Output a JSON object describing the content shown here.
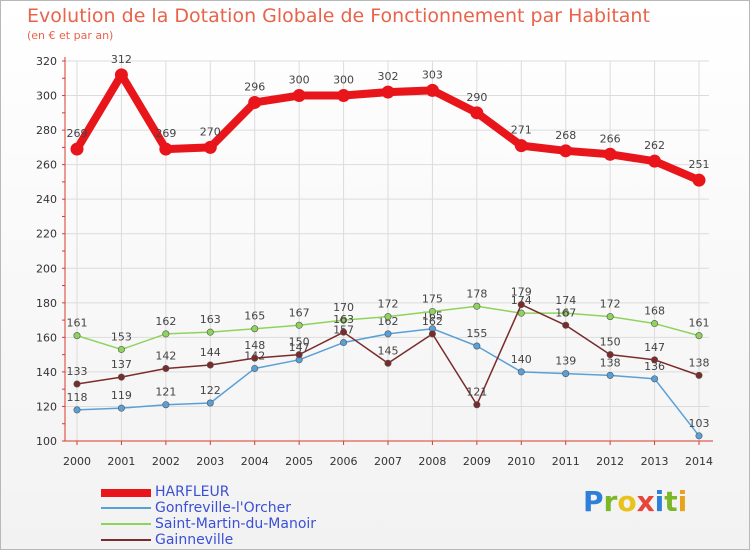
{
  "header": {
    "title": "Evolution de la Dotation Globale de Fonctionnement par Habitant",
    "subtitle": "(en € et par an)"
  },
  "colors": {
    "title": "#e8634a",
    "axis": "#d83a2c",
    "grid": "#dcdcdc",
    "legend_text": "#3b4fd6"
  },
  "logo": {
    "text": "Proxiti",
    "letters": [
      "P",
      "r",
      "o",
      "x",
      "i",
      "t",
      "i"
    ],
    "colors": [
      "#2f7fd8",
      "#7ab829",
      "#e9c21b",
      "#e8443a",
      "#2f7fd8",
      "#7ab829",
      "#e9a21b"
    ]
  },
  "chart_data": {
    "type": "line",
    "x": [
      "2000",
      "2001",
      "2002",
      "2003",
      "2004",
      "2005",
      "2006",
      "2007",
      "2008",
      "2009",
      "2010",
      "2011",
      "2012",
      "2013",
      "2014"
    ],
    "yticks": [
      "100",
      "120",
      "140",
      "160",
      "180",
      "200",
      "220",
      "240",
      "260",
      "280",
      "300",
      "320"
    ],
    "ylim": [
      100,
      320
    ],
    "grid": true,
    "series": [
      {
        "name": "HARFLEUR",
        "color": "#e8151b",
        "style": "thick",
        "values": [
          269,
          312,
          269,
          270,
          296,
          300,
          300,
          302,
          303,
          290,
          271,
          268,
          266,
          262,
          251
        ],
        "labels": [
          "269",
          "312",
          "269",
          "270",
          "296",
          "300",
          "300",
          "302",
          "303",
          "290",
          "271",
          "268",
          "266",
          "262",
          "251"
        ]
      },
      {
        "name": "Gonfreville-l'Orcher",
        "color": "#5aa0d8",
        "style": "thin",
        "values": [
          118,
          119,
          121,
          122,
          142,
          147,
          157,
          162,
          165,
          155,
          140,
          139,
          138,
          136,
          103
        ],
        "labels": [
          "118",
          "119",
          "121",
          "122",
          "142",
          "147",
          "157",
          "162",
          "165",
          "155",
          "140",
          "139",
          "138",
          "136",
          "103"
        ]
      },
      {
        "name": "Saint-Martin-du-Manoir",
        "color": "#8ed45c",
        "style": "thin",
        "values": [
          161,
          153,
          162,
          163,
          165,
          167,
          170,
          172,
          175,
          178,
          174,
          174,
          172,
          168,
          161
        ],
        "labels": [
          "161",
          "153",
          "162",
          "163",
          "165",
          "167",
          "170",
          "172",
          "175",
          "178",
          "174",
          "174",
          "172",
          "168",
          "161"
        ]
      },
      {
        "name": "Gainneville",
        "color": "#7a2b2b",
        "style": "thin",
        "values": [
          133,
          137,
          142,
          144,
          148,
          150,
          163,
          145,
          162,
          121,
          179,
          167,
          150,
          147,
          138
        ],
        "labels": [
          "133",
          "137",
          "142",
          "144",
          "148",
          "150",
          "163",
          "145",
          "162",
          "121",
          "179",
          "167",
          "150",
          "147",
          "138"
        ]
      }
    ]
  }
}
